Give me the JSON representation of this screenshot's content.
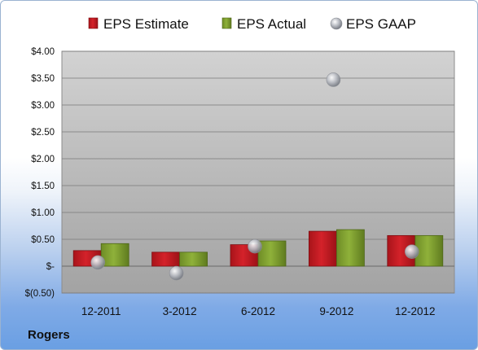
{
  "company": "Rogers",
  "colors": {
    "estimate": "#d4222a",
    "actual": "#8fb13a",
    "gaap": "#b9bcc3",
    "plot_top": "#d2d2d2",
    "plot_bottom": "#a3a3a3"
  },
  "chart_data": {
    "type": "bar",
    "title": "",
    "xlabel": "",
    "ylabel": "",
    "categories": [
      "12-2011",
      "3-2012",
      "6-2012",
      "9-2012",
      "12-2012"
    ],
    "series": [
      {
        "name": "EPS Estimate",
        "kind": "bar",
        "values": [
          0.29,
          0.26,
          0.4,
          0.65,
          0.57
        ]
      },
      {
        "name": "EPS Actual",
        "kind": "bar",
        "values": [
          0.42,
          0.26,
          0.47,
          0.68,
          0.57
        ]
      },
      {
        "name": "EPS GAAP",
        "kind": "marker",
        "values": [
          0.07,
          -0.13,
          0.37,
          3.47,
          0.27
        ]
      }
    ],
    "ylim": [
      -0.5,
      4.0
    ],
    "yticks": [
      -0.5,
      0,
      0.5,
      1.0,
      1.5,
      2.0,
      2.5,
      3.0,
      3.5,
      4.0
    ],
    "ytick_labels": [
      "$(0.50)",
      "$-",
      "$0.50",
      "$1.00",
      "$1.50",
      "$2.00",
      "$2.50",
      "$3.00",
      "$3.50",
      "$4.00"
    ],
    "grid": true,
    "legend": "top"
  }
}
